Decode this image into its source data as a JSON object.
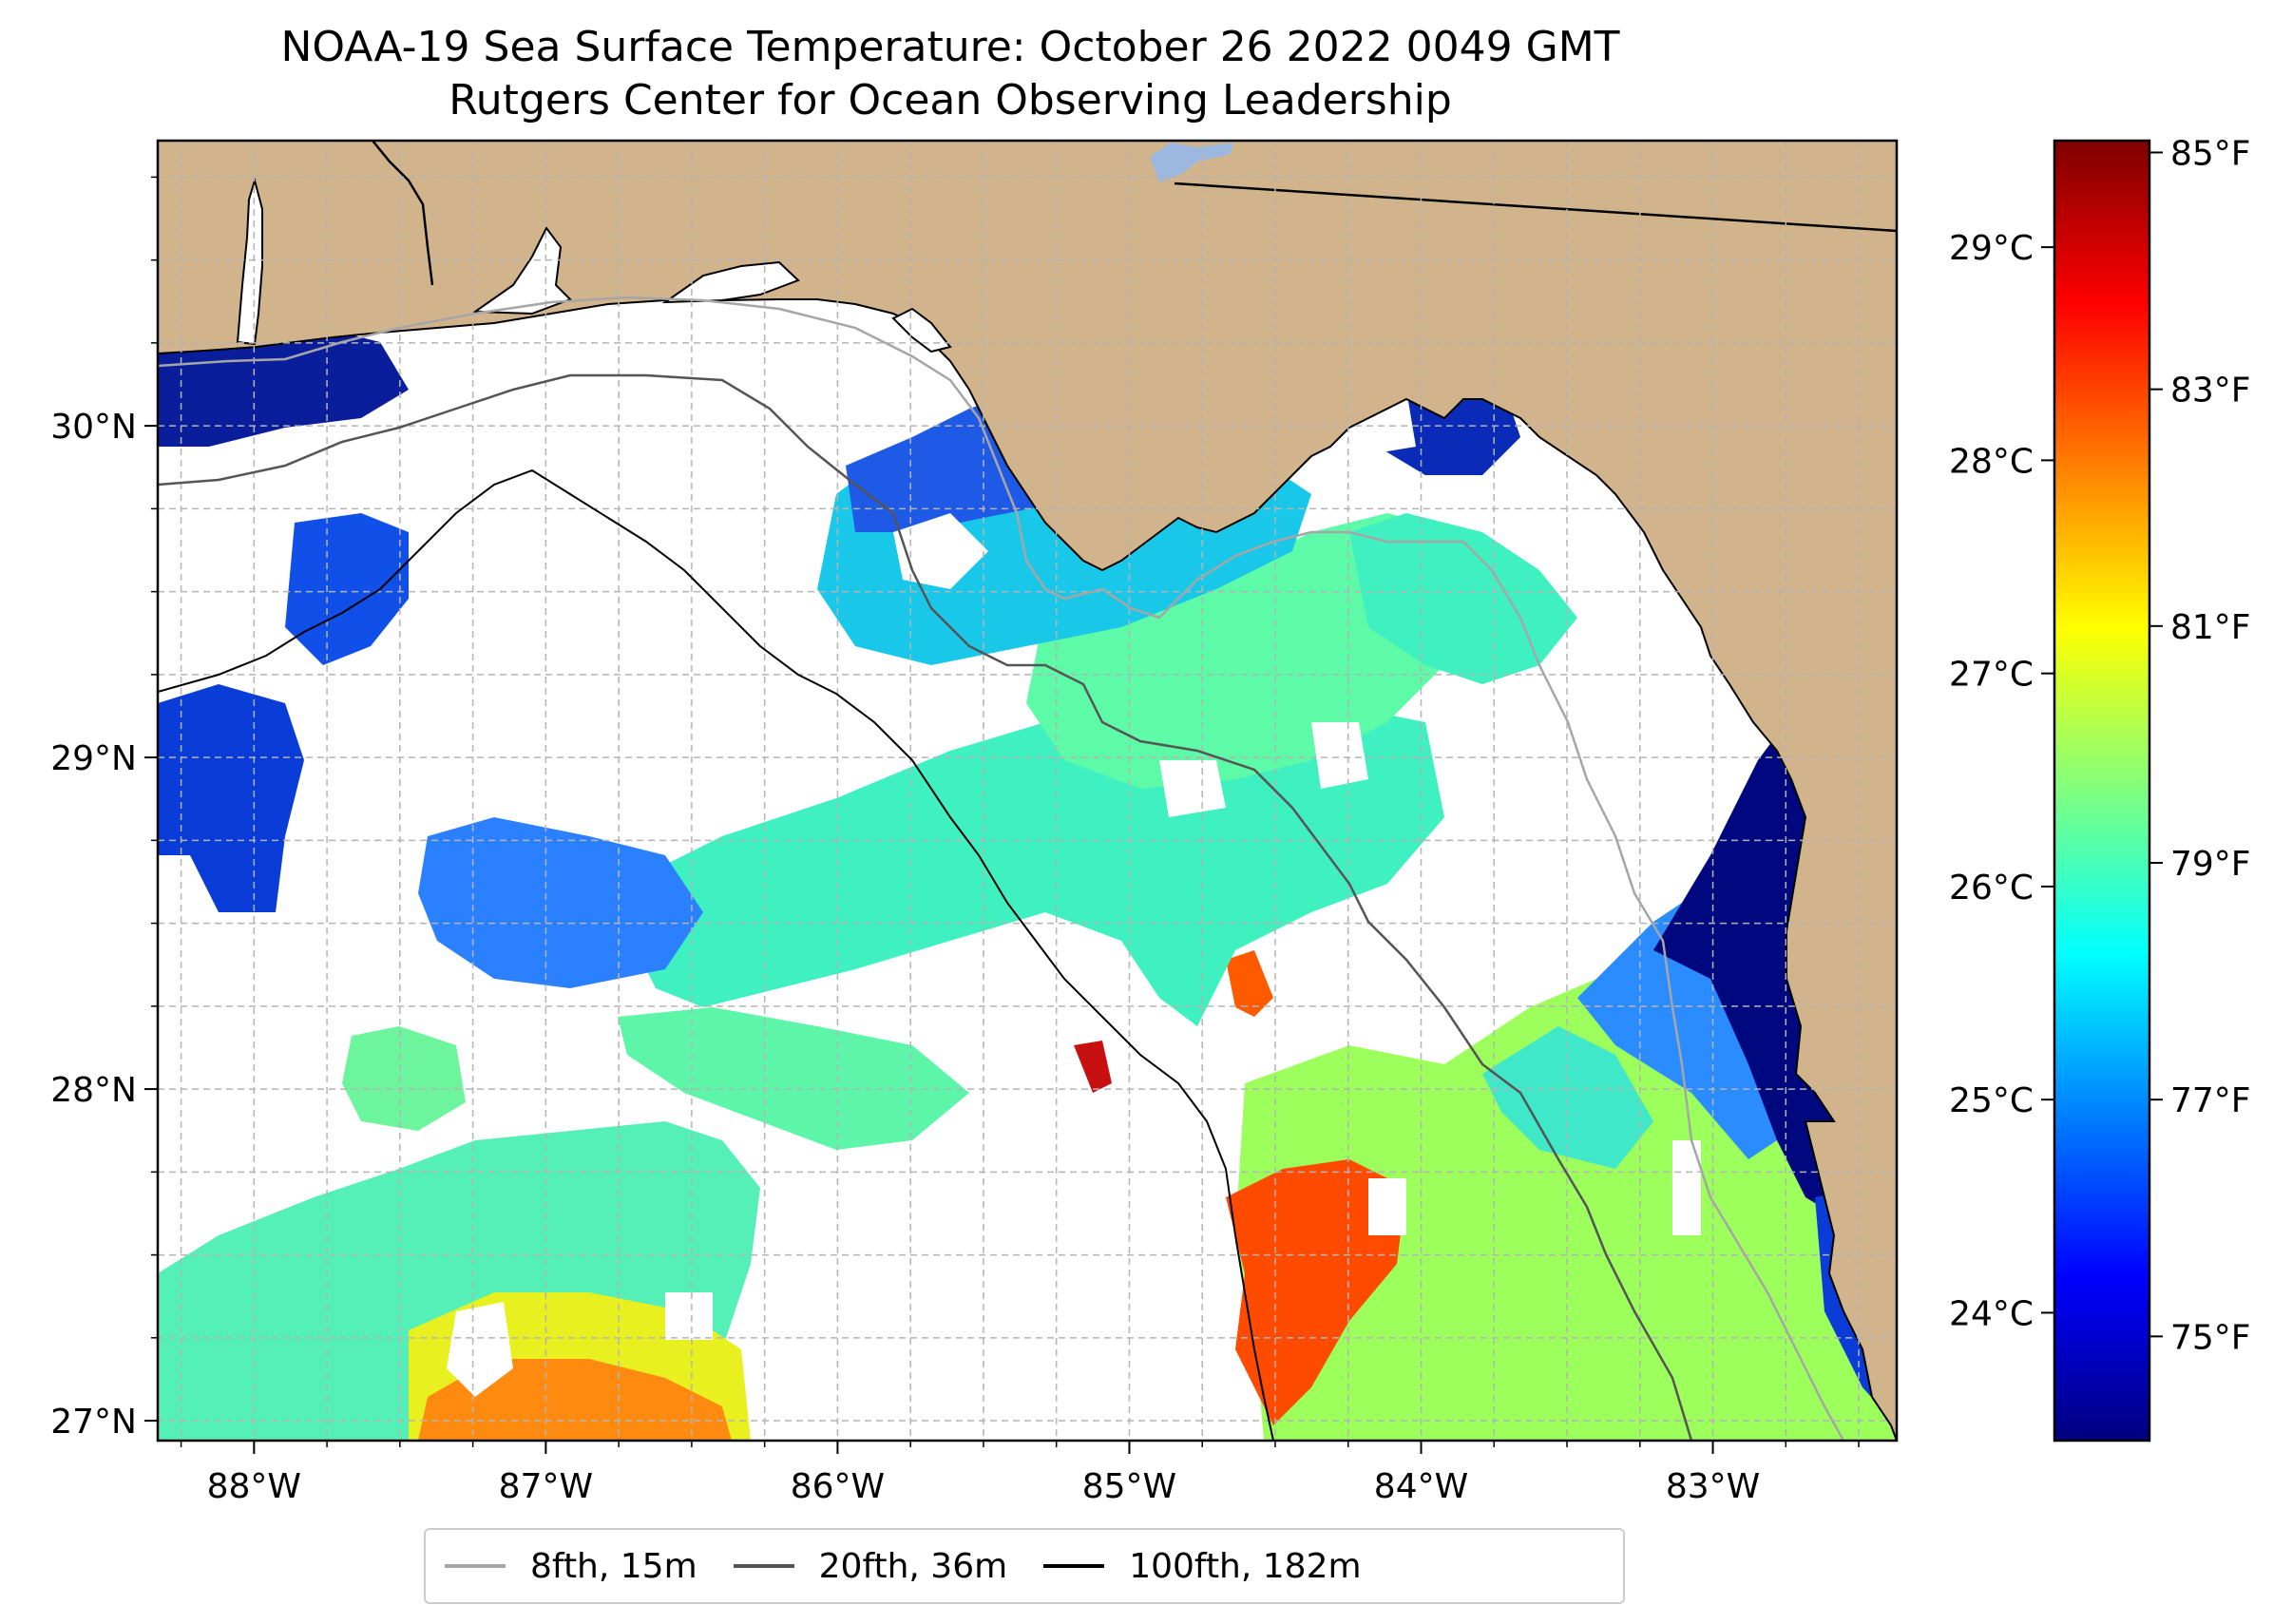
{
  "title": {
    "line1": "NOAA-19 Sea Surface Temperature: October 26 2022 0049 GMT",
    "line2": "Rutgers Center for Ocean Observing Leadership"
  },
  "colors": {
    "land": "#d2b48c",
    "lake": "#9db8e0",
    "grid": "#b4b4b4",
    "contour_8fth": "#a6a6a6",
    "contour_20fth": "#555555",
    "contour_100fth": "#000000",
    "colormap": [
      "#00007f",
      "#0000ff",
      "#007fff",
      "#00ffff",
      "#7fff7f",
      "#ffff00",
      "#ff7f00",
      "#ff0000",
      "#7f0000"
    ]
  },
  "map": {
    "lon_range": [
      -88.33,
      -82.37
    ],
    "lat_range": [
      26.94,
      30.86
    ],
    "lon_ticks": [
      {
        "value": -88,
        "label": "88°W"
      },
      {
        "value": -87,
        "label": "87°W"
      },
      {
        "value": -86,
        "label": "86°W"
      },
      {
        "value": -85,
        "label": "85°W"
      },
      {
        "value": -84,
        "label": "84°W"
      },
      {
        "value": -83,
        "label": "83°W"
      }
    ],
    "lat_ticks": [
      {
        "value": 27,
        "label": "27°N"
      },
      {
        "value": 28,
        "label": "28°N"
      },
      {
        "value": 29,
        "label": "29°N"
      },
      {
        "value": 30,
        "label": "30°N"
      }
    ]
  },
  "colorbar": {
    "range_c": [
      23.4,
      29.5
    ],
    "celsius_ticks": [
      {
        "value": 24,
        "label": "24°C"
      },
      {
        "value": 25,
        "label": "25°C"
      },
      {
        "value": 26,
        "label": "26°C"
      },
      {
        "value": 27,
        "label": "27°C"
      },
      {
        "value": 28,
        "label": "28°C"
      },
      {
        "value": 29,
        "label": "29°C"
      }
    ],
    "fahrenheit_ticks": [
      {
        "value": 75,
        "label": "75°F"
      },
      {
        "value": 77,
        "label": "77°F"
      },
      {
        "value": 79,
        "label": "79°F"
      },
      {
        "value": 81,
        "label": "81°F"
      },
      {
        "value": 83,
        "label": "83°F"
      },
      {
        "value": 85,
        "label": "85°F"
      }
    ]
  },
  "legend": [
    {
      "label": "8fth, 15m",
      "color": "#a6a6a6"
    },
    {
      "label": "20fth, 36m",
      "color": "#555555"
    },
    {
      "label": "100fth, 182m",
      "color": "#000000"
    }
  ]
}
